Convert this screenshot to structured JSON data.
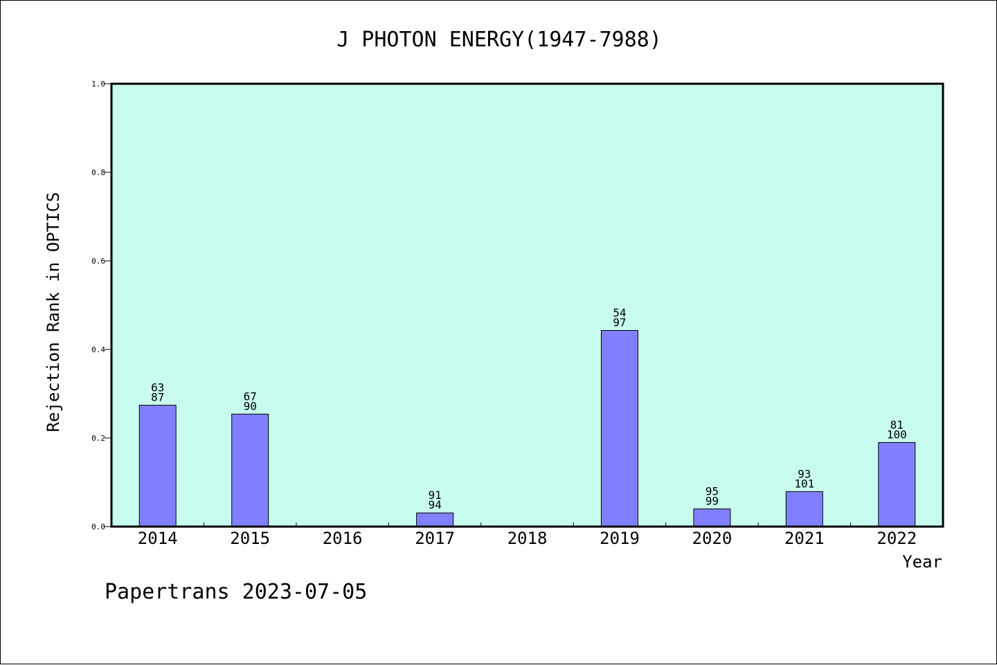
{
  "chart_data": {
    "type": "bar",
    "title": "J PHOTON ENERGY(1947-7988)",
    "xlabel": "Year",
    "ylabel": "Rejection Rank in OPTICS",
    "ylim": [
      0,
      1.0
    ],
    "yticks": [
      "0.0",
      "0.2",
      "0.4",
      "0.6",
      "0.8",
      "1.0"
    ],
    "grid": false,
    "categories": [
      "2014",
      "2015",
      "2016",
      "2017",
      "2018",
      "2019",
      "2020",
      "2021",
      "2022"
    ],
    "values": [
      0.274,
      0.254,
      0,
      0.031,
      0,
      0.443,
      0.04,
      0.079,
      0.19
    ],
    "bar_labels": [
      [
        "63",
        "87"
      ],
      [
        "67",
        "90"
      ],
      null,
      [
        "91",
        "94"
      ],
      null,
      [
        "54",
        "97"
      ],
      [
        "95",
        "99"
      ],
      [
        "93",
        "101"
      ],
      [
        "81",
        "100"
      ]
    ],
    "colors": {
      "plot_background": "#c8fcee",
      "bar_fill": "#8080ff",
      "bar_stroke": "#000000"
    }
  },
  "footer": {
    "text": "Papertrans 2023-07-05"
  }
}
